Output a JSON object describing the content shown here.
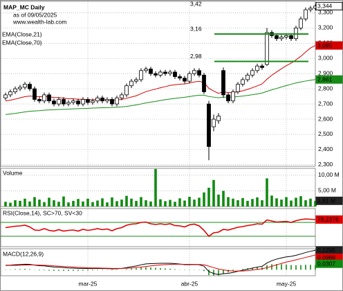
{
  "chart_data": [
    {
      "type": "candlestick",
      "title": "MAP_MC Daily",
      "subtitle": "as of 09/05/2025",
      "source": "www.wealth-lab.com",
      "categories": [
        null,
        null,
        null,
        null,
        null,
        null,
        null,
        null,
        null,
        null,
        null,
        null,
        null,
        null,
        null,
        null,
        null,
        "mar-25",
        null,
        null,
        null,
        null,
        null,
        null,
        null,
        null,
        null,
        null,
        null,
        null,
        null,
        null,
        null,
        null,
        null,
        null,
        null,
        null,
        "abr-25",
        null,
        null,
        null,
        null,
        null,
        null,
        null,
        null,
        null,
        null,
        null,
        null,
        null,
        null,
        null,
        null,
        null,
        null,
        null,
        "may-25",
        null,
        null,
        null,
        null,
        null,
        null
      ],
      "open": [
        2.74,
        2.76,
        2.78,
        2.8,
        2.81,
        2.83,
        2.8,
        2.73,
        2.72,
        2.76,
        2.72,
        2.7,
        2.73,
        2.7,
        2.71,
        2.72,
        2.7,
        2.73,
        2.71,
        2.72,
        2.74,
        2.72,
        2.73,
        2.7,
        2.74,
        2.76,
        2.82,
        2.85,
        2.86,
        2.92,
        2.93,
        2.9,
        2.89,
        2.91,
        2.9,
        2.91,
        2.88,
        2.87,
        2.85,
        2.9,
        2.92,
        2.89,
        2.7,
        2.55,
        2.59,
        2.92,
        2.76,
        2.72,
        2.78,
        2.83,
        2.86,
        2.89,
        2.92,
        2.95,
        2.96,
        3.17,
        3.15,
        3.13,
        3.14,
        3.15,
        3.13,
        3.2,
        3.26,
        3.32,
        3.33
      ],
      "high": [
        2.775,
        2.795,
        2.815,
        2.825,
        2.845,
        2.845,
        2.815,
        2.745,
        2.775,
        2.775,
        2.735,
        2.745,
        2.745,
        2.725,
        2.735,
        2.735,
        2.745,
        2.745,
        2.735,
        2.755,
        2.755,
        2.745,
        2.745,
        2.755,
        2.775,
        2.835,
        2.865,
        2.875,
        2.935,
        2.945,
        2.945,
        2.915,
        2.925,
        2.925,
        2.925,
        2.925,
        2.895,
        2.885,
        2.915,
        2.935,
        2.935,
        2.905,
        2.72,
        2.63,
        2.64,
        2.94,
        2.775,
        2.795,
        2.845,
        2.875,
        2.905,
        2.935,
        2.965,
        2.965,
        3.2,
        3.185,
        3.165,
        3.155,
        3.165,
        3.165,
        3.215,
        3.275,
        3.335,
        3.345,
        3.355
      ],
      "low": [
        2.725,
        2.745,
        2.765,
        2.785,
        2.795,
        2.785,
        2.715,
        2.705,
        2.705,
        2.705,
        2.685,
        2.685,
        2.685,
        2.685,
        2.695,
        2.685,
        2.685,
        2.695,
        2.695,
        2.705,
        2.705,
        2.705,
        2.685,
        2.685,
        2.725,
        2.745,
        2.805,
        2.835,
        2.845,
        2.905,
        2.885,
        2.875,
        2.875,
        2.885,
        2.885,
        2.865,
        2.855,
        2.835,
        2.835,
        2.885,
        2.875,
        2.765,
        2.33,
        2.52,
        2.57,
        2.74,
        2.705,
        2.705,
        2.765,
        2.815,
        2.845,
        2.875,
        2.905,
        2.925,
        2.95,
        3.135,
        3.115,
        3.115,
        3.125,
        3.115,
        3.115,
        3.185,
        3.245,
        3.305,
        3.315
      ],
      "close": [
        2.76,
        2.78,
        2.8,
        2.81,
        2.83,
        2.8,
        2.73,
        2.72,
        2.76,
        2.72,
        2.7,
        2.73,
        2.7,
        2.71,
        2.72,
        2.7,
        2.73,
        2.71,
        2.72,
        2.74,
        2.72,
        2.73,
        2.7,
        2.74,
        2.76,
        2.82,
        2.85,
        2.86,
        2.92,
        2.93,
        2.9,
        2.89,
        2.91,
        2.9,
        2.91,
        2.88,
        2.87,
        2.85,
        2.9,
        2.92,
        2.89,
        2.78,
        2.42,
        2.6,
        2.62,
        2.76,
        2.72,
        2.78,
        2.83,
        2.86,
        2.89,
        2.92,
        2.95,
        2.94,
        3.17,
        3.15,
        3.13,
        3.14,
        3.15,
        3.13,
        3.2,
        3.26,
        3.32,
        3.33,
        3.344
      ],
      "close_label": "3,344",
      "series": [
        {
          "name": "EMA(Close,21)",
          "color": "#d40000",
          "last_label": "3,085",
          "values": [
            2.72,
            2.725,
            2.732,
            2.74,
            2.748,
            2.752,
            2.75,
            2.748,
            2.749,
            2.747,
            2.743,
            2.742,
            2.738,
            2.735,
            2.734,
            2.731,
            2.731,
            2.729,
            2.728,
            2.729,
            2.728,
            2.728,
            2.726,
            2.727,
            2.73,
            2.737,
            2.746,
            2.754,
            2.768,
            2.781,
            2.79,
            2.798,
            2.807,
            2.814,
            2.822,
            2.826,
            2.83,
            2.832,
            2.838,
            2.845,
            2.849,
            2.842,
            2.803,
            2.785,
            2.77,
            2.78,
            2.775,
            2.775,
            2.78,
            2.787,
            2.796,
            2.807,
            2.819,
            2.832,
            2.863,
            2.889,
            2.911,
            2.932,
            2.952,
            2.969,
            2.99,
            3.014,
            3.042,
            3.068,
            3.085
          ]
        },
        {
          "name": "EMA(Close,70)",
          "color": "#178a17",
          "last_label": "2,861",
          "values": [
            2.63,
            2.634,
            2.638,
            2.643,
            2.648,
            2.652,
            2.654,
            2.656,
            2.659,
            2.661,
            2.662,
            2.664,
            2.665,
            2.666,
            2.668,
            2.669,
            2.67,
            2.671,
            2.673,
            2.674,
            2.675,
            2.676,
            2.677,
            2.679,
            2.681,
            2.684,
            2.689,
            2.694,
            2.7,
            2.707,
            2.712,
            2.717,
            2.723,
            2.728,
            2.733,
            2.737,
            2.741,
            2.744,
            2.749,
            2.754,
            2.758,
            2.758,
            2.749,
            2.745,
            2.741,
            2.745,
            2.745,
            2.746,
            2.749,
            2.752,
            2.756,
            2.761,
            2.766,
            2.772,
            2.783,
            2.793,
            2.802,
            2.812,
            2.821,
            2.83,
            2.838,
            2.845,
            2.851,
            2.856,
            2.861
          ]
        }
      ],
      "annotations": [
        {
          "value": 3.42,
          "label": "3,42"
        },
        {
          "value": 3.16,
          "label": "3,16"
        },
        {
          "value": 2.98,
          "label": "2,98"
        }
      ],
      "annotation_color": "#178a17",
      "ylim": [
        2.29,
        3.375
      ],
      "yticks": [
        {
          "value": 2.3,
          "label": "2,300"
        },
        {
          "value": 2.4,
          "label": "2,400"
        },
        {
          "value": 2.5,
          "label": "2,500"
        },
        {
          "value": 2.6,
          "label": "2,600"
        },
        {
          "value": 2.7,
          "label": "2,700"
        },
        {
          "value": 2.8,
          "label": "2,800"
        },
        {
          "value": 2.9,
          "label": "2,900"
        },
        {
          "value": 3.0,
          "label": "3,000"
        },
        {
          "value": 3.1,
          "label": "3,100"
        },
        {
          "value": 3.2,
          "label": "3,200"
        },
        {
          "value": 3.3,
          "label": "3,300"
        }
      ],
      "grid": true
    },
    {
      "type": "bar",
      "title": "Volume",
      "color": "#118a11",
      "values": [
        1.5,
        1.2,
        2.0,
        1.8,
        2.5,
        1.6,
        3.0,
        2.2,
        1.4,
        2.8,
        2.0,
        1.5,
        3.2,
        1.3,
        1.8,
        2.4,
        1.6,
        2.5,
        1.4,
        1.9,
        2.6,
        1.3,
        2.9,
        1.7,
        2.2,
        3.4,
        2.5,
        1.8,
        3.0,
        2.0,
        1.6,
        12.0,
        2.3,
        1.7,
        2.1,
        1.5,
        2.6,
        1.9,
        3.1,
        2.2,
        2.8,
        4.5,
        6.0,
        8.5,
        3.8,
        5.0,
        3.0,
        2.5,
        2.0,
        2.7,
        1.8,
        2.4,
        2.9,
        2.0,
        9.0,
        3.5,
        2.6,
        2.2,
        3.0,
        1.9,
        2.8,
        3.3,
        2.0,
        2.5,
        1.81
      ],
      "last_label": "1,81 M",
      "ylim": [
        0,
        12.2
      ],
      "yticks": [
        {
          "value": 5,
          "label": "5,00 M"
        },
        {
          "value": 10,
          "label": "10,00 M"
        }
      ],
      "grid": true
    },
    {
      "type": "line",
      "title": "RSI(Close,14), SC>70, SV<30",
      "color": "#e00000",
      "values": [
        55,
        57,
        59,
        60,
        62,
        57,
        48,
        47,
        52,
        47,
        45,
        49,
        45,
        47,
        48,
        45,
        50,
        47,
        49,
        52,
        49,
        51,
        46,
        52,
        55,
        62,
        65,
        66,
        70,
        71,
        66,
        64,
        66,
        64,
        66,
        61,
        60,
        57,
        63,
        65,
        60,
        47,
        30,
        40,
        42,
        50,
        48,
        52,
        56,
        58,
        61,
        63,
        66,
        65,
        77,
        74,
        71,
        72,
        73,
        70,
        75,
        78,
        80,
        79,
        78.2376
      ],
      "last_label": "78,2376",
      "levels": [
        70,
        30
      ],
      "level_color": "#178a17",
      "ylim": [
        0,
        110
      ]
    },
    {
      "type": "macd",
      "title": "MACD(12,26,9)",
      "series": [
        {
          "color": "#000000",
          "last_label": "0,1295",
          "values": [
            0.03,
            0.031,
            0.033,
            0.035,
            0.037,
            0.036,
            0.031,
            0.027,
            0.026,
            0.022,
            0.018,
            0.017,
            0.014,
            0.012,
            0.011,
            0.009,
            0.009,
            0.008,
            0.008,
            0.009,
            0.008,
            0.008,
            0.006,
            0.007,
            0.009,
            0.014,
            0.02,
            0.025,
            0.033,
            0.039,
            0.041,
            0.042,
            0.043,
            0.043,
            0.043,
            0.041,
            0.038,
            0.034,
            0.034,
            0.035,
            0.033,
            0.024,
            -0.012,
            -0.025,
            -0.032,
            -0.026,
            -0.024,
            -0.018,
            -0.01,
            -0.003,
            0.004,
            0.011,
            0.018,
            0.023,
            0.045,
            0.06,
            0.071,
            0.079,
            0.086,
            0.089,
            0.096,
            0.105,
            0.115,
            0.123,
            0.1295
          ]
        },
        {
          "color": "#e00000",
          "last_label": "0,0988",
          "values": [
            0.028,
            0.029,
            0.029,
            0.03,
            0.031,
            0.032,
            0.032,
            0.031,
            0.03,
            0.028,
            0.026,
            0.024,
            0.022,
            0.02,
            0.018,
            0.016,
            0.015,
            0.013,
            0.012,
            0.012,
            0.011,
            0.01,
            0.009,
            0.009,
            0.009,
            0.01,
            0.012,
            0.015,
            0.018,
            0.022,
            0.026,
            0.029,
            0.032,
            0.034,
            0.036,
            0.037,
            0.037,
            0.036,
            0.036,
            0.036,
            0.035,
            0.033,
            0.024,
            0.014,
            0.005,
            -0.001,
            -0.006,
            -0.008,
            -0.009,
            -0.008,
            -0.006,
            -0.002,
            0.002,
            0.006,
            0.014,
            0.023,
            0.033,
            0.042,
            0.051,
            0.058,
            0.066,
            0.074,
            0.082,
            0.09,
            0.0988
          ]
        }
      ],
      "histogram": {
        "color": "#118a11",
        "last_label": "0,0307",
        "values": [
          0.002,
          0.002,
          0.004,
          0.005,
          0.006,
          0.004,
          -0.001,
          -0.004,
          -0.004,
          -0.006,
          -0.008,
          -0.007,
          -0.008,
          -0.008,
          -0.007,
          -0.007,
          -0.006,
          -0.005,
          -0.004,
          -0.003,
          -0.003,
          -0.002,
          -0.003,
          -0.002,
          0,
          0.004,
          0.008,
          0.01,
          0.015,
          0.017,
          0.015,
          0.013,
          0.011,
          0.009,
          0.007,
          0.004,
          0.001,
          -0.002,
          -0.002,
          -0.001,
          -0.002,
          -0.009,
          -0.036,
          -0.039,
          -0.037,
          -0.025,
          -0.018,
          -0.01,
          -0.001,
          0.005,
          0.01,
          0.013,
          0.016,
          0.017,
          0.031,
          0.037,
          0.038,
          0.037,
          0.035,
          0.031,
          0.03,
          0.031,
          0.033,
          0.033,
          0.0307
        ]
      },
      "ylim": [
        -0.04,
        0.14
      ]
    }
  ]
}
